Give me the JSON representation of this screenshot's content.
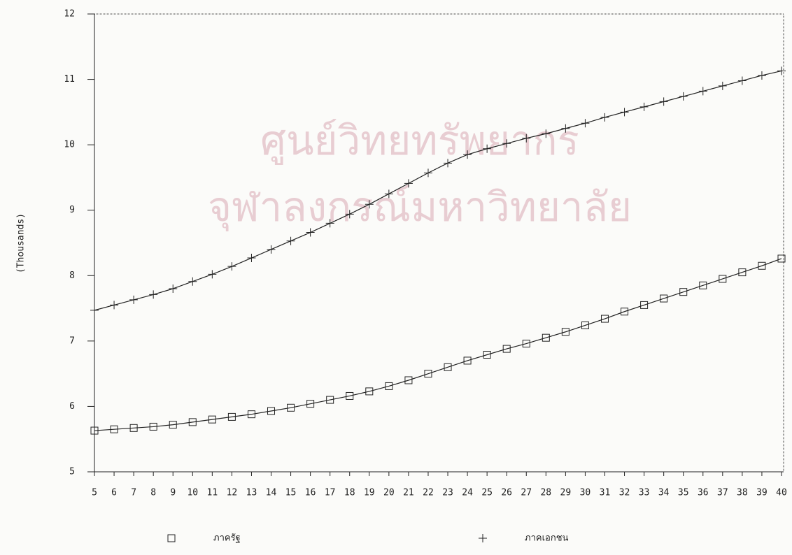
{
  "chart_data": {
    "type": "line",
    "watermark": [
      "ศูนย์วิทยทรัพยากร",
      "จุฬาลงกรณ์มหาวิทยาลัย"
    ],
    "y_label": "(Thousands)",
    "x": [
      5,
      6,
      7,
      8,
      9,
      10,
      11,
      12,
      13,
      14,
      15,
      16,
      17,
      18,
      19,
      20,
      21,
      22,
      23,
      24,
      25,
      26,
      27,
      28,
      29,
      30,
      31,
      32,
      33,
      34,
      35,
      36,
      37,
      38,
      39,
      40
    ],
    "xlim": [
      5,
      40
    ],
    "xticks": [
      5,
      6,
      7,
      8,
      9,
      10,
      11,
      12,
      13,
      14,
      15,
      16,
      17,
      18,
      19,
      20,
      21,
      22,
      23,
      24,
      25,
      26,
      27,
      28,
      29,
      30,
      31,
      32,
      33,
      34,
      35,
      36,
      37,
      38,
      39,
      40
    ],
    "ylim": [
      5,
      12
    ],
    "yticks": [
      5,
      6,
      7,
      8,
      9,
      10,
      11,
      12
    ],
    "series": [
      {
        "name": "ภาครัฐ",
        "marker": "square",
        "color": "#222222",
        "values": [
          5.63,
          5.65,
          5.67,
          5.69,
          5.72,
          5.76,
          5.8,
          5.84,
          5.88,
          5.93,
          5.98,
          6.04,
          6.1,
          6.16,
          6.23,
          6.31,
          6.4,
          6.5,
          6.6,
          6.7,
          6.79,
          6.88,
          6.96,
          7.05,
          7.14,
          7.24,
          7.34,
          7.45,
          7.55,
          7.65,
          7.75,
          7.85,
          7.95,
          8.05,
          8.15,
          8.26
        ]
      },
      {
        "name": "ภาคเอกชน",
        "marker": "plus",
        "color": "#222222",
        "values": [
          7.47,
          7.55,
          7.63,
          7.71,
          7.8,
          7.91,
          8.02,
          8.14,
          8.27,
          8.4,
          8.53,
          8.66,
          8.8,
          8.94,
          9.09,
          9.25,
          9.41,
          9.57,
          9.72,
          9.85,
          9.94,
          10.02,
          10.1,
          10.17,
          10.25,
          10.33,
          10.42,
          10.5,
          10.58,
          10.66,
          10.74,
          10.82,
          10.9,
          10.98,
          11.06,
          11.13
        ]
      }
    ]
  }
}
